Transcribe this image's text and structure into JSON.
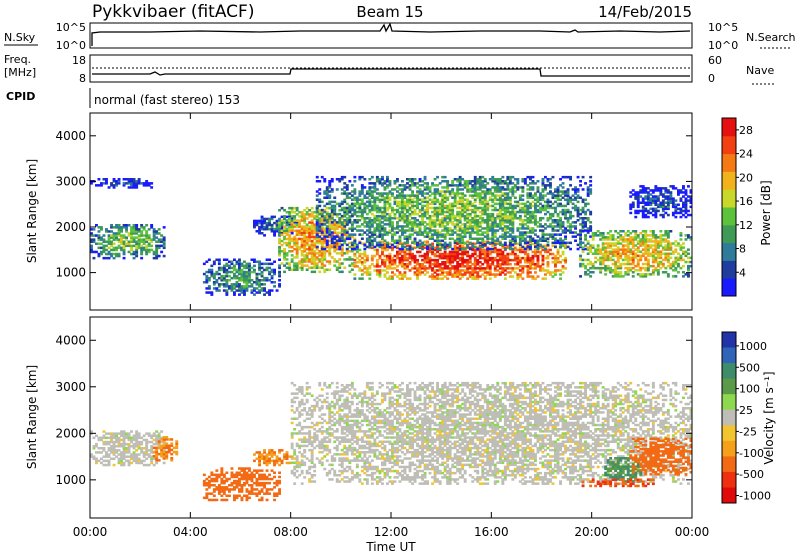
{
  "header": {
    "station": "Pykkvibaer (fitACF)",
    "beam": "Beam 15",
    "date": "14/Feb/2015"
  },
  "top_panels": {
    "nsky_label": "N.Sky",
    "nsky_ticks": [
      "10^5",
      "10^0"
    ],
    "nsearch_label": "N.Search",
    "nsearch_ticks": [
      "10^5",
      "10^0"
    ],
    "freq_label_1": "Freq.",
    "freq_label_2": "[MHz]",
    "freq_ticks": [
      "18",
      "8"
    ],
    "nave_label": "Nave",
    "nave_ticks": [
      "60",
      "0"
    ],
    "cpid_label": "CPID",
    "cpid_text": "normal (fast stereo) 153"
  },
  "colors": {
    "power": [
      "#1a1aff",
      "#1e3d9e",
      "#2e7b9a",
      "#3f9a55",
      "#5cc23c",
      "#c9d62a",
      "#f2b21c",
      "#f57a14",
      "#f24012",
      "#e61010"
    ],
    "velocity": [
      "#2233aa",
      "#2f64b6",
      "#3f8c6a",
      "#5a9a48",
      "#8ed850",
      "#bebeb6",
      "#f2c430",
      "#f5a01a",
      "#f26a14",
      "#ee3010",
      "#e00a0a"
    ]
  },
  "chart_data": [
    {
      "type": "heatmap",
      "name": "power",
      "xlabel": "Time UT",
      "ylabel": "Slant Range [km]",
      "xlim": [
        0,
        24
      ],
      "ylim": [
        180,
        4500
      ],
      "x_ticks": [
        "00:00",
        "04:00",
        "08:00",
        "12:00",
        "16:00",
        "20:00",
        "00:00"
      ],
      "y_ticks": [
        "1000",
        "2000",
        "3000",
        "4000"
      ],
      "y_tick_values": [
        1000,
        2000,
        3000,
        4000
      ],
      "colorbar_label": "Power [dB]",
      "colorbar_ticks": [
        "28",
        "24",
        "20",
        "16",
        "12",
        "8",
        "4"
      ],
      "colorbar_range": [
        0,
        30
      ],
      "regions": [
        {
          "t": [
            0.0,
            3.0
          ],
          "r": [
            1300,
            2050
          ],
          "p": 14
        },
        {
          "t": [
            0.0,
            2.5
          ],
          "r": [
            2850,
            3050
          ],
          "p": 6
        },
        {
          "t": [
            4.5,
            7.5
          ],
          "r": [
            500,
            1300
          ],
          "p": 11
        },
        {
          "t": [
            6.5,
            8.2
          ],
          "r": [
            1800,
            2250
          ],
          "p": 8
        },
        {
          "t": [
            7.5,
            10.5
          ],
          "r": [
            1000,
            2400
          ],
          "p": 22
        },
        {
          "t": [
            10.5,
            19.0
          ],
          "r": [
            850,
            1700
          ],
          "p": 28
        },
        {
          "t": [
            9.0,
            20.0
          ],
          "r": [
            1500,
            3100
          ],
          "p": 14
        },
        {
          "t": [
            19.5,
            24.0
          ],
          "r": [
            900,
            1900
          ],
          "p": 20
        },
        {
          "t": [
            21.5,
            24.0
          ],
          "r": [
            2200,
            2900
          ],
          "p": 6
        }
      ]
    },
    {
      "type": "heatmap",
      "name": "velocity",
      "xlabel": "Time UT",
      "ylabel": "Slant Range [km]",
      "xlim": [
        0,
        24
      ],
      "ylim": [
        180,
        4500
      ],
      "x_ticks": [
        "00:00",
        "04:00",
        "08:00",
        "12:00",
        "16:00",
        "20:00",
        "00:00"
      ],
      "y_ticks": [
        "1000",
        "2000",
        "3000",
        "4000"
      ],
      "y_tick_values": [
        1000,
        2000,
        3000,
        4000
      ],
      "colorbar_label": "Velocity [m s⁻¹]",
      "colorbar_ticks": [
        "1000",
        "500",
        "100",
        "25",
        "-25",
        "-100",
        "-500",
        "-1000"
      ],
      "regions": [
        {
          "t": [
            0.0,
            3.0
          ],
          "r": [
            1300,
            2050
          ],
          "v": 0
        },
        {
          "t": [
            2.5,
            3.5
          ],
          "r": [
            1400,
            1900
          ],
          "v": -200
        },
        {
          "t": [
            4.5,
            7.5
          ],
          "r": [
            550,
            1250
          ],
          "v": -300
        },
        {
          "t": [
            6.5,
            8.0
          ],
          "r": [
            1300,
            1650
          ],
          "v": -200
        },
        {
          "t": [
            8.0,
            24.0
          ],
          "r": [
            900,
            3100
          ],
          "v": 0
        },
        {
          "t": [
            20.5,
            22.0
          ],
          "r": [
            950,
            1450
          ],
          "v": 200
        },
        {
          "t": [
            21.5,
            24.0
          ],
          "r": [
            1100,
            1900
          ],
          "v": -300
        },
        {
          "t": [
            19.5,
            22.5
          ],
          "r": [
            850,
            1000
          ],
          "v": -500
        }
      ]
    }
  ]
}
